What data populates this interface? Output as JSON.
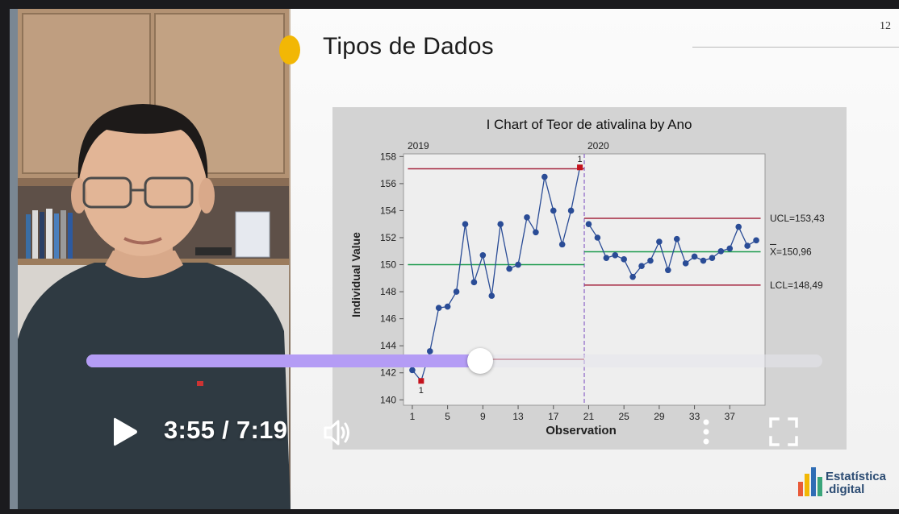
{
  "slide": {
    "number": "12",
    "title": "Tipos de Dados",
    "logo_line1": "Estatística",
    "logo_line2": ".digital"
  },
  "player": {
    "current_time": "3:55",
    "separator": " / ",
    "duration": "7:19",
    "progress": 0.5354,
    "icons": [
      "play-icon",
      "volume-icon",
      "more-vert-icon",
      "fullscreen-icon"
    ],
    "accent": "#b49cf5"
  },
  "chart_data": {
    "type": "line",
    "title": "I Chart of Teor de ativalina by Ano",
    "xlabel": "Observation",
    "ylabel": "Individual Value",
    "stages": [
      "2019",
      "2020"
    ],
    "stage_break_after": 20,
    "x_ticks": [
      1,
      5,
      9,
      13,
      17,
      21,
      25,
      29,
      33,
      37
    ],
    "y_ticks": [
      140,
      142,
      144,
      146,
      148,
      150,
      152,
      154,
      156,
      158
    ],
    "ylim": [
      139.6,
      158.2
    ],
    "xlim": [
      0,
      41
    ],
    "x": [
      1,
      2,
      3,
      4,
      5,
      6,
      7,
      8,
      9,
      10,
      11,
      12,
      13,
      14,
      15,
      16,
      17,
      18,
      19,
      20,
      21,
      22,
      23,
      24,
      25,
      26,
      27,
      28,
      29,
      30,
      31,
      32,
      33,
      34,
      35,
      36,
      37,
      38,
      39,
      40
    ],
    "values": [
      142.2,
      141.4,
      143.6,
      146.8,
      146.9,
      148.0,
      153.0,
      148.7,
      150.7,
      147.7,
      153.0,
      149.7,
      150.0,
      153.5,
      152.4,
      156.5,
      154.0,
      151.5,
      154.0,
      157.2,
      153.0,
      152.0,
      150.5,
      150.7,
      150.4,
      149.1,
      149.9,
      150.3,
      151.7,
      149.6,
      151.9,
      150.1,
      150.6,
      150.3,
      150.5,
      151.0,
      151.2,
      152.8,
      151.4,
      151.8
    ],
    "out_of_control": [
      2,
      20
    ],
    "out_of_control_label": "1",
    "limits": [
      {
        "stage": "2019",
        "ucl": 157.1,
        "center": 150.0,
        "lcl": 143.0
      },
      {
        "stage": "2020",
        "ucl": 153.43,
        "center": 150.96,
        "lcl": 148.49
      }
    ],
    "limit_labels": {
      "ucl": "UCL=153,43",
      "center": "X=150,96",
      "lcl": "LCL=148,49"
    },
    "colors": {
      "series": "#2a4c96",
      "limit": "#a4263f",
      "center": "#1b9a4c",
      "flag": "#c4121d",
      "stage_line": "#8b63c7"
    }
  }
}
